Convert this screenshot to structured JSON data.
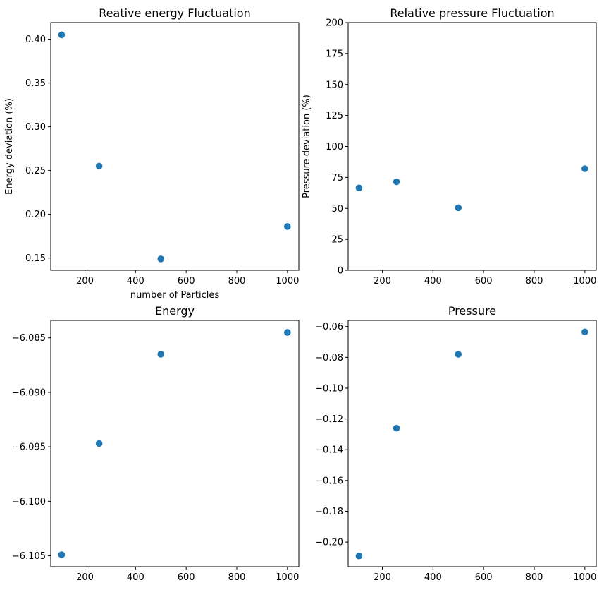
{
  "chart_data": [
    {
      "type": "scatter",
      "title": "Reative energy Fluctuation",
      "xlabel": "number of Particles",
      "ylabel": "Energy deviation (%)",
      "x": [
        108,
        256,
        500,
        1000
      ],
      "y": [
        0.405,
        0.255,
        0.149,
        0.186
      ],
      "xlim": [
        65,
        1045
      ],
      "ylim": [
        0.136,
        0.419
      ],
      "xticks": [
        200,
        400,
        600,
        800,
        1000
      ],
      "xtick_labels": [
        "200",
        "400",
        "600",
        "800",
        "1000"
      ],
      "yticks": [
        0.15,
        0.2,
        0.25,
        0.3,
        0.35,
        0.4
      ],
      "ytick_labels": [
        "0.15",
        "0.20",
        "0.25",
        "0.30",
        "0.35",
        "0.40"
      ],
      "marker_color": "#1f77b4"
    },
    {
      "type": "scatter",
      "title": "Relative pressure Fluctuation",
      "xlabel": "",
      "ylabel": "Pressure deviation (%)",
      "x": [
        108,
        256,
        500,
        1000
      ],
      "y": [
        66.5,
        71.5,
        50.5,
        82
      ],
      "xlim": [
        65,
        1045
      ],
      "ylim": [
        0,
        200
      ],
      "xticks": [
        200,
        400,
        600,
        800,
        1000
      ],
      "xtick_labels": [
        "200",
        "400",
        "600",
        "800",
        "1000"
      ],
      "yticks": [
        0,
        25,
        50,
        75,
        100,
        125,
        150,
        175,
        200
      ],
      "ytick_labels": [
        "0",
        "25",
        "50",
        "75",
        "100",
        "125",
        "150",
        "175",
        "200"
      ],
      "marker_color": "#1f77b4"
    },
    {
      "type": "scatter",
      "title": "Energy",
      "xlabel": "",
      "ylabel": "",
      "x": [
        108,
        256,
        500,
        1000
      ],
      "y": [
        -6.1049,
        -6.0947,
        -6.0865,
        -6.0845
      ],
      "xlim": [
        65,
        1045
      ],
      "ylim": [
        -6.106,
        -6.0834
      ],
      "xticks": [
        200,
        400,
        600,
        800,
        1000
      ],
      "xtick_labels": [
        "200",
        "400",
        "600",
        "800",
        "1000"
      ],
      "yticks": [
        -6.105,
        -6.1,
        -6.095,
        -6.09,
        -6.085
      ],
      "ytick_labels": [
        "−6.105",
        "−6.100",
        "−6.095",
        "−6.090",
        "−6.085"
      ],
      "marker_color": "#1f77b4"
    },
    {
      "type": "scatter",
      "title": "Pressure",
      "xlabel": "",
      "ylabel": "",
      "x": [
        108,
        256,
        500,
        1000
      ],
      "y": [
        -0.209,
        -0.126,
        -0.078,
        -0.0635
      ],
      "xlim": [
        65,
        1045
      ],
      "ylim": [
        -0.216,
        -0.056
      ],
      "xticks": [
        200,
        400,
        600,
        800,
        1000
      ],
      "xtick_labels": [
        "200",
        "400",
        "600",
        "800",
        "1000"
      ],
      "yticks": [
        -0.2,
        -0.18,
        -0.16,
        -0.14,
        -0.12,
        -0.1,
        -0.08,
        -0.06
      ],
      "ytick_labels": [
        "−0.20",
        "−0.18",
        "−0.16",
        "−0.14",
        "−0.12",
        "−0.10",
        "−0.08",
        "−0.06"
      ],
      "marker_color": "#1f77b4"
    }
  ]
}
